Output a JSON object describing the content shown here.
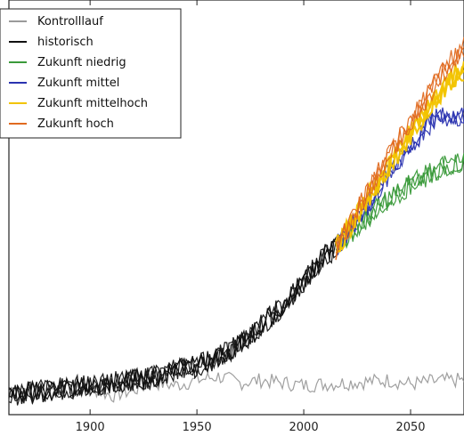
{
  "chart_data": {
    "type": "line",
    "title": "",
    "xlabel": "",
    "ylabel": "",
    "xlim": [
      1862,
      2075
    ],
    "xticks": [
      "1900",
      "1950",
      "2000",
      "2050"
    ],
    "grid": false,
    "legend_position": "top-left",
    "series": [
      {
        "name": "Kontrolllauf",
        "color": "#9a9a9a",
        "x": [
          1890,
          1900,
          1910,
          1920,
          1930,
          1940,
          1950,
          1960,
          1970,
          1980,
          1990,
          2000,
          2010,
          2020,
          2030,
          2040,
          2050,
          2060,
          2070,
          2075
        ],
        "y": [
          -0.08,
          -0.04,
          -0.1,
          -0.06,
          0.0,
          -0.02,
          0.02,
          0.05,
          0.0,
          0.02,
          0.0,
          -0.02,
          -0.01,
          0.0,
          0.01,
          0.02,
          -0.01,
          0.01,
          0.02,
          0.02
        ]
      },
      {
        "name": "historisch",
        "color": "#111111",
        "x": [
          1862,
          1870,
          1880,
          1890,
          1900,
          1910,
          1920,
          1930,
          1940,
          1950,
          1960,
          1970,
          1980,
          1990,
          2000,
          2005,
          2010,
          2015
        ],
        "y": [
          -0.1,
          -0.08,
          -0.06,
          -0.04,
          -0.02,
          0.0,
          0.02,
          0.05,
          0.1,
          0.13,
          0.2,
          0.3,
          0.45,
          0.6,
          0.8,
          0.9,
          1.0,
          1.05
        ]
      },
      {
        "name": "Zukunft niedrig",
        "color": "#3a9a3a",
        "x": [
          2015,
          2020,
          2030,
          2040,
          2050,
          2060,
          2070,
          2075
        ],
        "y": [
          1.05,
          1.15,
          1.3,
          1.45,
          1.55,
          1.65,
          1.72,
          1.72
        ]
      },
      {
        "name": "Zukunft mittel",
        "color": "#2a33b0",
        "x": [
          2015,
          2020,
          2030,
          2040,
          2050,
          2060,
          2070,
          2075
        ],
        "y": [
          1.05,
          1.18,
          1.4,
          1.65,
          1.85,
          2.05,
          2.1,
          2.1
        ]
      },
      {
        "name": "Zukunft mittelhoch",
        "color": "#f2c400",
        "x": [
          2015,
          2020,
          2030,
          2040,
          2050,
          2060,
          2070,
          2075
        ],
        "y": [
          1.05,
          1.18,
          1.45,
          1.7,
          1.95,
          2.2,
          2.4,
          2.45
        ]
      },
      {
        "name": "Zukunft hoch",
        "color": "#e06a20",
        "x": [
          2015,
          2020,
          2030,
          2040,
          2050,
          2060,
          2070,
          2075
        ],
        "y": [
          1.05,
          1.2,
          1.5,
          1.78,
          2.05,
          2.3,
          2.55,
          2.62
        ]
      }
    ]
  }
}
